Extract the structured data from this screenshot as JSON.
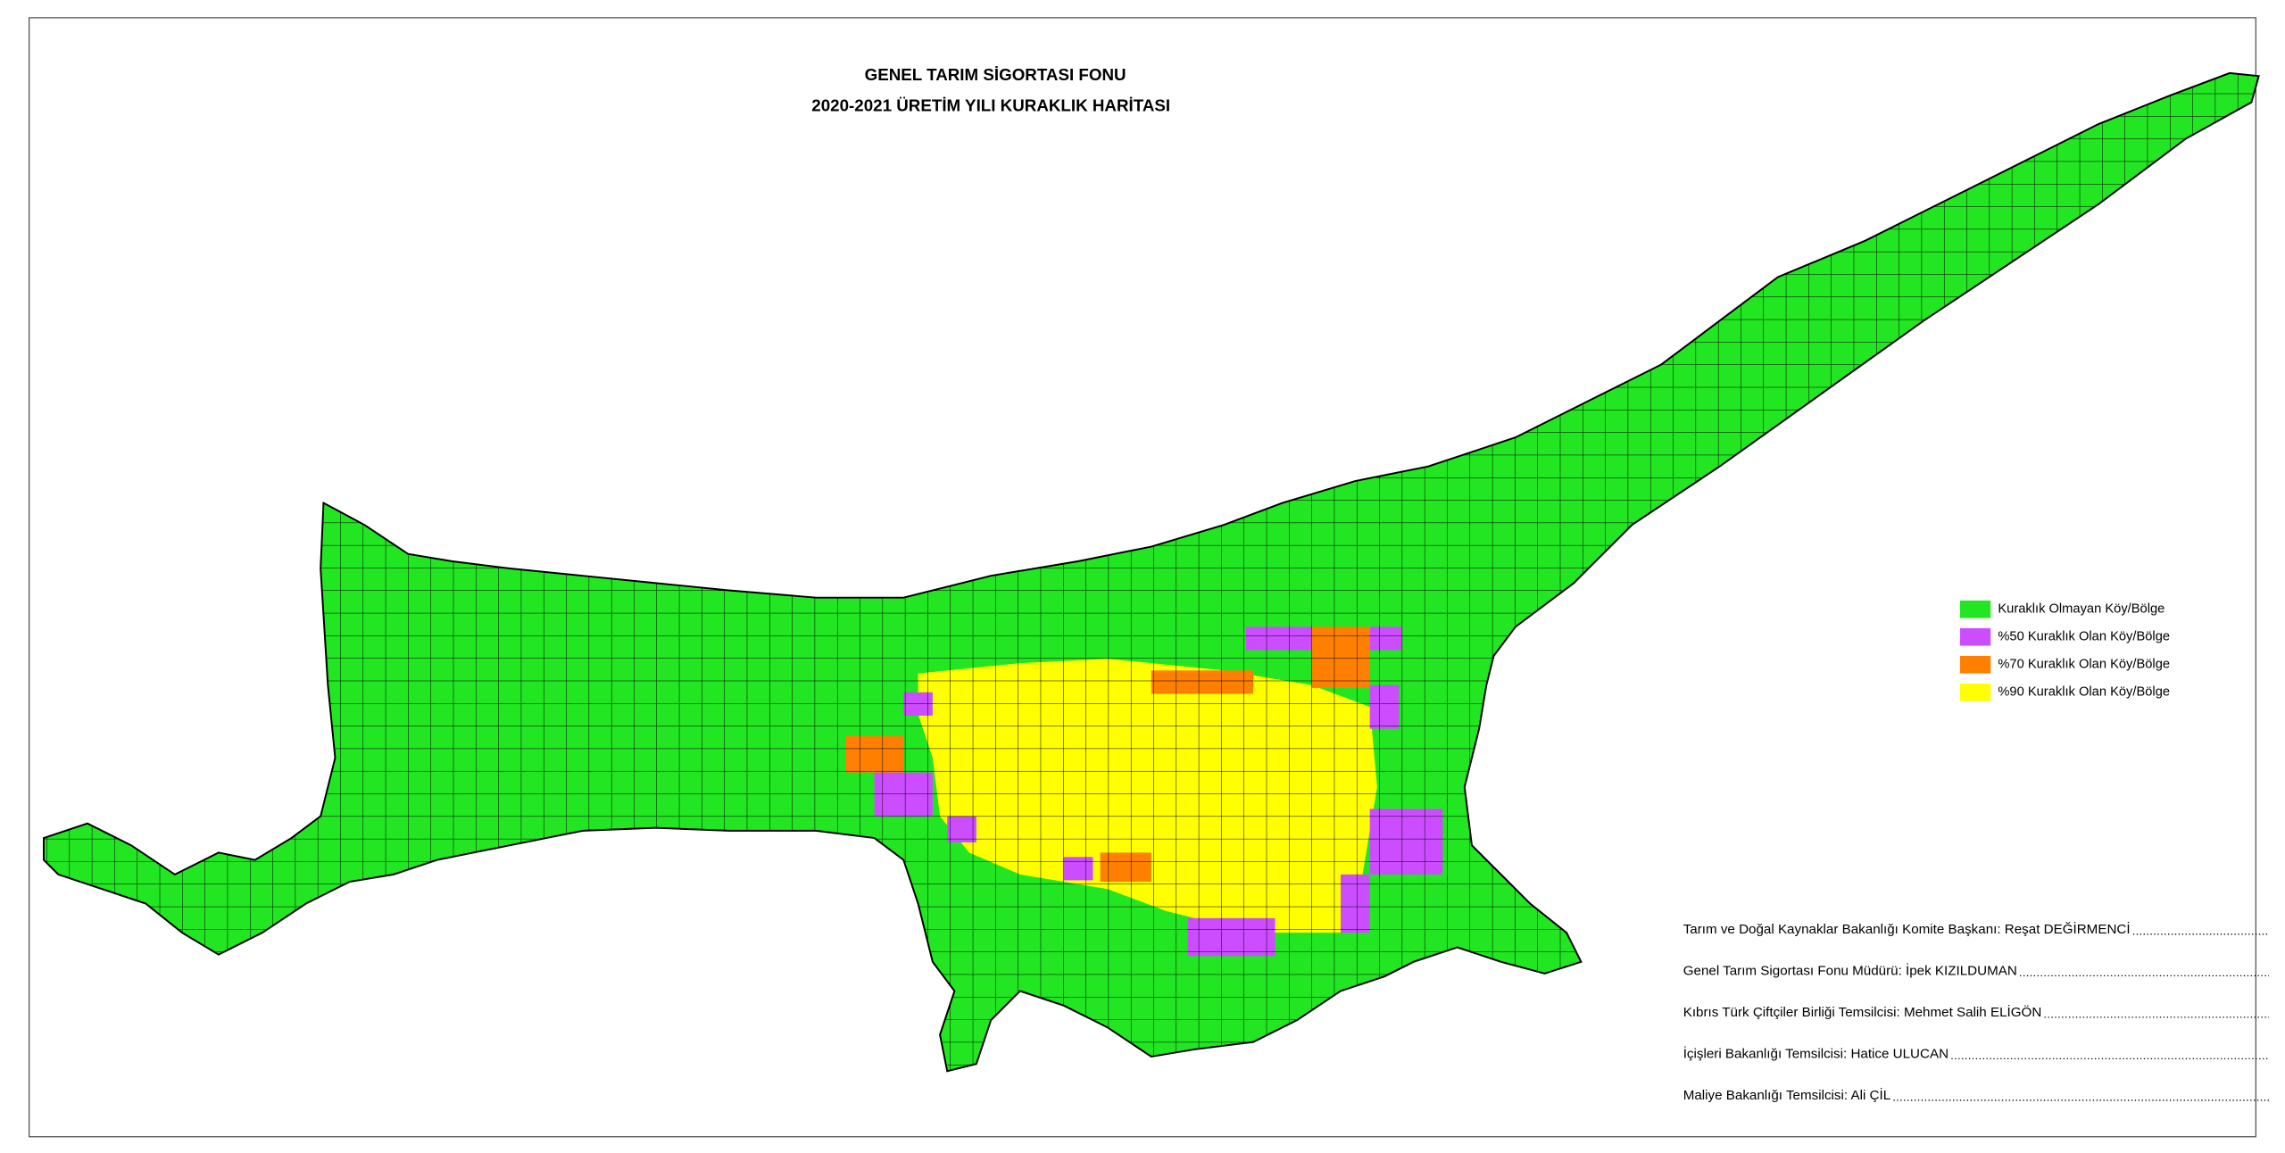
{
  "header": {
    "title": "GENEL TARIM SİGORTASI FONU",
    "subtitle": "2020-2021 ÜRETİM YILI KURAKLIK HARİTASI"
  },
  "legend": [
    {
      "label": "Kuraklık Olmayan Köy/Bölge",
      "color": "#22e622"
    },
    {
      "label": "%50 Kuraklık Olan Köy/Bölge",
      "color": "#cc4dff"
    },
    {
      "label": "%70 Kuraklık Olan Köy/Bölge",
      "color": "#ff8000"
    },
    {
      "label": "%90 Kuraklık Olan Köy/Bölge",
      "color": "#ffff00"
    }
  ],
  "signatures": [
    "Tarım ve Doğal Kaynaklar Bakanlığı Komite Başkanı: Reşat DEĞİRMENCİ",
    "Genel Tarım Sigortası Fonu Müdürü: İpek KIZILDUMAN",
    "Kıbrıs Türk Çiftçiler Birliği Temsilcisi: Mehmet Salih ELİGÖN",
    "İçişleri Bakanlığı Temsilcisi: Hatice ULUCAN",
    "Maliye Bakanlığı Temsilcisi: Ali ÇİL"
  ]
}
